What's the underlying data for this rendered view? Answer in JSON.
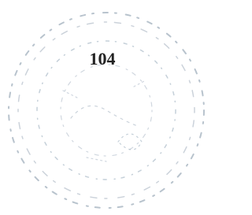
{
  "stamp": {
    "number": "104"
  }
}
